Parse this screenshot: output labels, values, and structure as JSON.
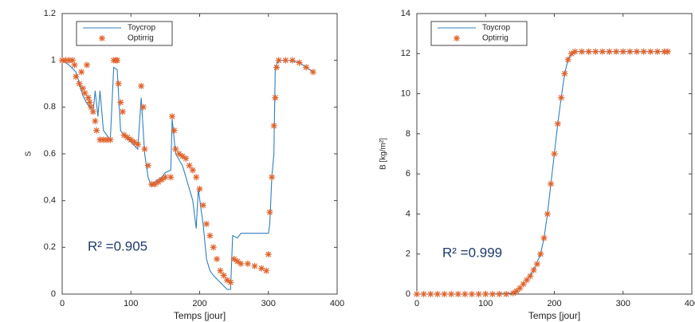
{
  "chart_data": [
    {
      "type": "line",
      "xlabel": "Temps [jour]",
      "ylabel": "S",
      "annotation": "R² =0.905",
      "xlim": [
        0,
        400
      ],
      "xticks": [
        0,
        100,
        200,
        300,
        400
      ],
      "ylim": [
        0,
        1.2
      ],
      "yticks": [
        0,
        0.2,
        0.4,
        0.6,
        0.8,
        1,
        1.2
      ],
      "legend": "upper left",
      "series": [
        {
          "name": "Toycrop",
          "color": "#2f7fbf",
          "marker": "none",
          "x": [
            0,
            10,
            20,
            25,
            30,
            35,
            40,
            45,
            48,
            52,
            55,
            60,
            65,
            70,
            75,
            80,
            85,
            90,
            100,
            110,
            115,
            120,
            125,
            130,
            135,
            145,
            150,
            158,
            160,
            165,
            175,
            180,
            190,
            195,
            198,
            205,
            210,
            215,
            220,
            230,
            240,
            245,
            248,
            255,
            260,
            280,
            300,
            302,
            305,
            308,
            310,
            315,
            330,
            345,
            355,
            365
          ],
          "values": [
            1.0,
            0.98,
            0.95,
            0.9,
            0.85,
            0.82,
            0.8,
            0.78,
            0.87,
            0.76,
            0.87,
            0.7,
            0.68,
            0.66,
            0.97,
            0.96,
            0.7,
            0.68,
            0.65,
            0.62,
            0.84,
            0.6,
            0.5,
            0.46,
            0.48,
            0.5,
            0.52,
            0.53,
            0.75,
            0.6,
            0.55,
            0.5,
            0.4,
            0.28,
            0.45,
            0.3,
            0.15,
            0.1,
            0.08,
            0.05,
            0.02,
            0.02,
            0.25,
            0.24,
            0.26,
            0.26,
            0.26,
            0.3,
            0.5,
            0.6,
            0.97,
            1.0,
            1.0,
            0.99,
            0.97,
            0.95
          ]
        },
        {
          "name": "Optirrig",
          "color": "#e0622b",
          "marker": "*",
          "x": [
            0,
            5,
            10,
            15,
            18,
            20,
            25,
            28,
            30,
            33,
            36,
            38,
            40,
            42,
            45,
            48,
            50,
            55,
            60,
            65,
            70,
            75,
            78,
            80,
            82,
            85,
            88,
            90,
            95,
            100,
            105,
            110,
            115,
            118,
            120,
            125,
            130,
            135,
            140,
            145,
            150,
            158,
            160,
            163,
            165,
            170,
            175,
            180,
            185,
            190,
            195,
            200,
            205,
            210,
            215,
            220,
            225,
            230,
            235,
            240,
            245,
            250,
            255,
            260,
            270,
            280,
            290,
            297,
            300,
            302,
            305,
            308,
            310,
            312,
            315,
            325,
            335,
            345,
            355,
            365
          ],
          "values": [
            1,
            1,
            1,
            1,
            0.98,
            0.93,
            0.9,
            0.95,
            0.88,
            0.86,
            0.98,
            0.84,
            0.82,
            0.8,
            0.78,
            0.74,
            0.7,
            0.66,
            0.66,
            0.66,
            0.66,
            1,
            1,
            1,
            0.9,
            0.82,
            0.78,
            0.68,
            0.67,
            0.66,
            0.65,
            0.64,
            0.89,
            0.8,
            0.62,
            0.55,
            0.47,
            0.47,
            0.48,
            0.49,
            0.5,
            0.5,
            0.76,
            0.7,
            0.62,
            0.6,
            0.59,
            0.58,
            0.55,
            0.53,
            0.5,
            0.45,
            0.38,
            0.3,
            0.25,
            0.2,
            0.15,
            0.1,
            0.08,
            0.06,
            0.05,
            0.15,
            0.14,
            0.13,
            0.13,
            0.12,
            0.11,
            0.1,
            0.17,
            0.35,
            0.5,
            0.72,
            0.84,
            0.97,
            1,
            1,
            1,
            0.99,
            0.97,
            0.95
          ]
        }
      ]
    },
    {
      "type": "line",
      "xlabel": "Temps [jour]",
      "ylabel": "B [kg/m²]",
      "annotation": "R² =0.999",
      "xlim": [
        0,
        400
      ],
      "xticks": [
        0,
        100,
        200,
        300,
        400
      ],
      "ylim": [
        0,
        14
      ],
      "yticks": [
        0,
        2,
        4,
        6,
        8,
        10,
        12,
        14
      ],
      "legend": "upper left",
      "series": [
        {
          "name": "Toycrop",
          "color": "#2f7fbf",
          "marker": "none",
          "x": [
            0,
            100,
            140,
            150,
            160,
            170,
            180,
            185,
            190,
            195,
            200,
            205,
            210,
            215,
            220,
            225,
            230,
            240,
            300,
            365
          ],
          "values": [
            0,
            0,
            0.05,
            0.3,
            0.7,
            1.2,
            2.0,
            2.8,
            4.0,
            5.5,
            7.0,
            8.5,
            9.8,
            11,
            11.7,
            12.0,
            12.1,
            12.1,
            12.1,
            12.1
          ]
        },
        {
          "name": "Optirrig",
          "color": "#e0622b",
          "marker": "*",
          "x": [
            0,
            10,
            20,
            30,
            40,
            50,
            60,
            70,
            80,
            90,
            100,
            110,
            120,
            130,
            140,
            145,
            150,
            155,
            160,
            165,
            170,
            175,
            180,
            185,
            190,
            195,
            200,
            205,
            210,
            215,
            220,
            225,
            230,
            240,
            250,
            260,
            270,
            280,
            290,
            300,
            310,
            320,
            330,
            340,
            350,
            360,
            365
          ],
          "values": [
            0,
            0,
            0,
            0,
            0,
            0,
            0,
            0,
            0,
            0,
            0,
            0,
            0,
            0,
            0.05,
            0.15,
            0.3,
            0.5,
            0.7,
            0.9,
            1.2,
            1.5,
            2.0,
            2.8,
            4.0,
            5.5,
            7.0,
            8.5,
            9.8,
            11.0,
            11.7,
            12.0,
            12.1,
            12.1,
            12.1,
            12.1,
            12.1,
            12.1,
            12.1,
            12.1,
            12.1,
            12.1,
            12.1,
            12.1,
            12.1,
            12.1,
            12.1
          ]
        }
      ]
    }
  ]
}
